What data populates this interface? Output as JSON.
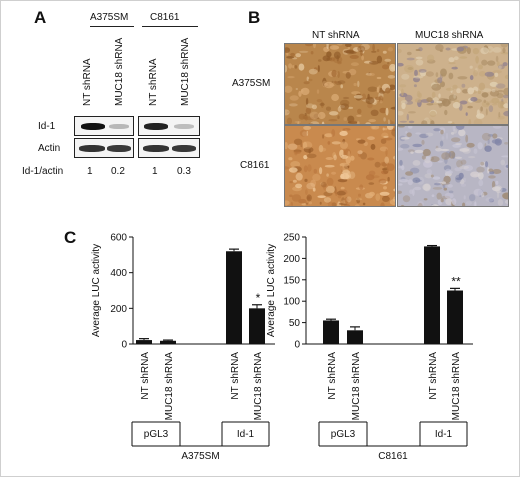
{
  "panel_a": {
    "letter": "A",
    "cell_lines": [
      "A375SM",
      "C8161"
    ],
    "lanes": [
      "NT shRNA",
      "MUC18 shRNA",
      "NT shRNA",
      "MUC18 shRNA"
    ],
    "rows": [
      "Id-1",
      "Actin"
    ],
    "ratio_label": "Id-1/actin",
    "ratios": [
      "1",
      "0.2",
      "1",
      "0.3"
    ]
  },
  "panel_b": {
    "letter": "B",
    "columns": [
      "NT shRNA",
      "MUC18 shRNA"
    ],
    "rows": [
      "A375SM",
      "C8161"
    ]
  },
  "panel_c": {
    "letter": "C"
  },
  "chart_data": [
    {
      "type": "bar",
      "cell_line": "A375SM",
      "ylabel": "Average LUC activity",
      "ylim": [
        0,
        600
      ],
      "yticks": [
        0,
        200,
        400,
        600
      ],
      "categories": [
        "NT shRNA",
        "MUC18 shRNA",
        "NT shRNA",
        "MUC18 shRNA"
      ],
      "groups": [
        "pGL3",
        "pGL3",
        "Id-1",
        "Id-1"
      ],
      "values": [
        22,
        18,
        520,
        200
      ],
      "errors": [
        8,
        4,
        12,
        20
      ],
      "significance": [
        "",
        "",
        "",
        "*"
      ],
      "group_labels": [
        "pGL3",
        "Id-1"
      ],
      "title_below": "A375SM",
      "bar_color": "#111111"
    },
    {
      "type": "bar",
      "cell_line": "C8161",
      "ylabel": "Average LUC activity",
      "ylim": [
        0,
        250
      ],
      "yticks": [
        0,
        50,
        100,
        150,
        200,
        250
      ],
      "categories": [
        "NT shRNA",
        "MUC18 shRNA",
        "NT shRNA",
        "MUC18 shRNA"
      ],
      "groups": [
        "pGL3",
        "pGL3",
        "Id-1",
        "Id-1"
      ],
      "values": [
        55,
        32,
        228,
        125
      ],
      "errors": [
        3,
        8,
        2,
        5
      ],
      "significance": [
        "",
        "",
        "",
        "**"
      ],
      "group_labels": [
        "pGL3",
        "Id-1"
      ],
      "title_below": "C8161",
      "bar_color": "#111111"
    }
  ]
}
